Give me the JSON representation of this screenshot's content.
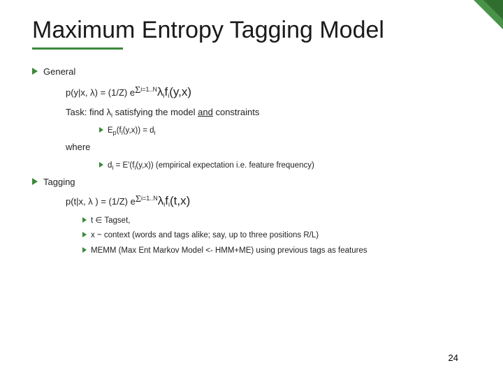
{
  "colors": {
    "accent": "#3a8a3a",
    "text": "#1a1a1a",
    "bg": "#ffffff"
  },
  "title": "Maximum Entropy Tagging Model",
  "general": {
    "label": "General",
    "formula_lhs": "p(y|x, λ) = (1/Z) e",
    "formula_sum_prefix": "i=1..N",
    "formula_sum_body": "λ",
    "formula_fn": "f",
    "formula_args": "(y,x)",
    "task_prefix": "Task: find λ",
    "task_sub": "i",
    "task_mid": " satisfying the model ",
    "task_and": "and",
    "task_suffix": " constraints",
    "ep_lhs": "E",
    "ep_sub": "p",
    "ep_body": "(f",
    "ep_body2": "(y,x)) = d",
    "where": "where",
    "di_lhs": "d",
    "di_body": " = E'(f",
    "di_tail": "(y,x))  (empirical expectation i.e. feature frequency)"
  },
  "tagging": {
    "label": "Tagging",
    "formula_lhs": "p(t|x, λ ) = (1/Z) e",
    "formula_sum_prefix": "i=1..N",
    "formula_args": "(t,x)",
    "t_line": "t ∈ Tagset,",
    "x_line": "x ~ context (words and tags alike; say, up to three positions R/L)",
    "memm_line": "MEMM (Max Ent Markov Model <- HMM+ME) using previous tags as features"
  },
  "pagenum": "24"
}
